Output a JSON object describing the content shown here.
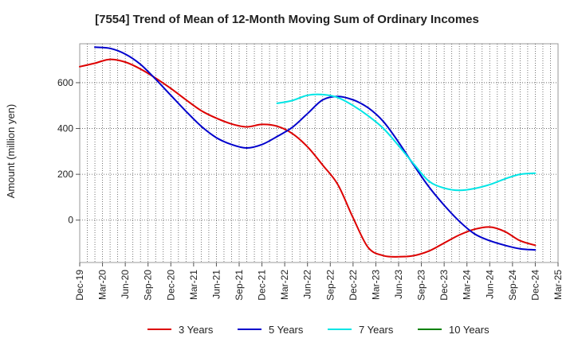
{
  "chart_data": {
    "type": "line",
    "title": "[7554]  Trend of Mean of 12-Month Moving Sum of Ordinary Incomes",
    "xlabel": "",
    "ylabel": "Amount (million yen)",
    "x_tick_labels": [
      "Dec-19",
      "Mar-20",
      "Jun-20",
      "Sep-20",
      "Dec-20",
      "Mar-21",
      "Jun-21",
      "Sep-21",
      "Dec-21",
      "Mar-22",
      "Jun-22",
      "Sep-22",
      "Dec-22",
      "Mar-23",
      "Jun-23",
      "Sep-23",
      "Dec-23",
      "Mar-24",
      "Jun-24",
      "Sep-24",
      "Dec-24",
      "Mar-25"
    ],
    "x_range": [
      0,
      63
    ],
    "y_ticks": [
      0,
      200,
      400,
      600
    ],
    "ylim": [
      -185,
      770
    ],
    "grid": true,
    "legend_position": "bottom",
    "series": [
      {
        "name": "3 Years",
        "color": "#dd0000",
        "x": [
          0,
          2,
          4,
          6,
          8,
          10,
          12,
          14,
          16,
          18,
          20,
          22,
          24,
          26,
          28,
          30,
          32,
          34,
          36,
          38,
          40,
          42,
          44,
          46,
          48,
          50,
          52,
          54,
          56,
          58,
          60
        ],
        "values": [
          670,
          685,
          702,
          690,
          660,
          620,
          575,
          525,
          478,
          445,
          420,
          407,
          418,
          410,
          378,
          320,
          240,
          155,
          10,
          -120,
          -155,
          -160,
          -155,
          -135,
          -100,
          -65,
          -40,
          -30,
          -50,
          -90,
          -110
        ]
      },
      {
        "name": "5 Years",
        "color": "#0000cc",
        "x": [
          2,
          4,
          6,
          8,
          10,
          12,
          14,
          16,
          18,
          20,
          22,
          24,
          26,
          28,
          30,
          32,
          34,
          36,
          38,
          40,
          42,
          44,
          46,
          48,
          50,
          52,
          54,
          56,
          58,
          60
        ],
        "values": [
          755,
          750,
          725,
          680,
          615,
          545,
          475,
          410,
          360,
          330,
          315,
          330,
          365,
          405,
          465,
          525,
          540,
          525,
          490,
          430,
          340,
          240,
          145,
          65,
          -5,
          -60,
          -90,
          -110,
          -125,
          -130
        ]
      },
      {
        "name": "7 Years",
        "color": "#00e5e5",
        "x": [
          26,
          28,
          30,
          32,
          34,
          36,
          38,
          40,
          42,
          44,
          46,
          48,
          50,
          52,
          54,
          56,
          58,
          60
        ],
        "values": [
          510,
          522,
          545,
          548,
          535,
          500,
          455,
          400,
          325,
          245,
          170,
          140,
          130,
          138,
          155,
          180,
          200,
          205
        ]
      },
      {
        "name": "10 Years",
        "color": "#008000",
        "x": [],
        "values": []
      }
    ]
  }
}
